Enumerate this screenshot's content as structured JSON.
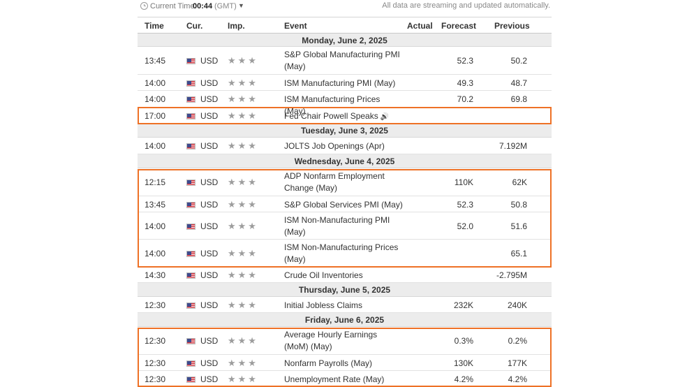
{
  "topbar": {
    "current_time_label": "Current Time:",
    "current_time": "00:44",
    "timezone": "(GMT)",
    "notice": "All data are streaming and updated automatically."
  },
  "columns": {
    "time": "Time",
    "cur": "Cur.",
    "imp": "Imp.",
    "event": "Event",
    "actual": "Actual",
    "forecast": "Forecast",
    "previous": "Previous"
  },
  "days": [
    {
      "date": "Monday, June 2, 2025",
      "events": [
        {
          "time": "13:45",
          "cur": "USD",
          "stars": "★★★",
          "event": "S&P Global Manufacturing PMI (May)",
          "actual": "",
          "forecast": "52.3",
          "previous": "50.2"
        },
        {
          "time": "14:00",
          "cur": "USD",
          "stars": "★★★",
          "event": "ISM Manufacturing PMI (May)",
          "actual": "",
          "forecast": "49.3",
          "previous": "48.7"
        },
        {
          "time": "14:00",
          "cur": "USD",
          "stars": "★★★",
          "event": "ISM Manufacturing Prices (May)",
          "actual": "",
          "forecast": "70.2",
          "previous": "69.8"
        },
        {
          "time": "17:00",
          "cur": "USD",
          "stars": "★★★",
          "event": "Fed Chair Powell Speaks",
          "actual": "",
          "forecast": "",
          "previous": ""
        }
      ]
    },
    {
      "date": "Tuesday, June 3, 2025",
      "events": [
        {
          "time": "14:00",
          "cur": "USD",
          "stars": "★★★",
          "event": "JOLTS Job Openings (Apr)",
          "actual": "",
          "forecast": "",
          "previous": "7.192M"
        }
      ]
    },
    {
      "date": "Wednesday, June 4, 2025",
      "events": [
        {
          "time": "12:15",
          "cur": "USD",
          "stars": "★★★",
          "event": "ADP Nonfarm Employment Change (May)",
          "actual": "",
          "forecast": "110K",
          "previous": "62K"
        },
        {
          "time": "13:45",
          "cur": "USD",
          "stars": "★★★",
          "event": "S&P Global Services PMI (May)",
          "actual": "",
          "forecast": "52.3",
          "previous": "50.8"
        },
        {
          "time": "14:00",
          "cur": "USD",
          "stars": "★★★",
          "event": "ISM Non-Manufacturing PMI (May)",
          "actual": "",
          "forecast": "52.0",
          "previous": "51.6"
        },
        {
          "time": "14:00",
          "cur": "USD",
          "stars": "★★★",
          "event": "ISM Non-Manufacturing Prices (May)",
          "actual": "",
          "forecast": "",
          "previous": "65.1"
        },
        {
          "time": "14:30",
          "cur": "USD",
          "stars": "★★★",
          "event": "Crude Oil Inventories",
          "actual": "",
          "forecast": "",
          "previous": "-2.795M"
        }
      ]
    },
    {
      "date": "Thursday, June 5, 2025",
      "events": [
        {
          "time": "12:30",
          "cur": "USD",
          "stars": "★★★",
          "event": "Initial Jobless Claims",
          "actual": "",
          "forecast": "232K",
          "previous": "240K"
        }
      ]
    },
    {
      "date": "Friday, June 6, 2025",
      "events": [
        {
          "time": "12:30",
          "cur": "USD",
          "stars": "★★★",
          "event": "Average Hourly Earnings (MoM) (May)",
          "actual": "",
          "forecast": "0.3%",
          "previous": "0.2%"
        },
        {
          "time": "12:30",
          "cur": "USD",
          "stars": "★★★",
          "event": "Nonfarm Payrolls (May)",
          "actual": "",
          "forecast": "130K",
          "previous": "177K"
        },
        {
          "time": "12:30",
          "cur": "USD",
          "stars": "★★★",
          "event": "Unemployment Rate (May)",
          "actual": "",
          "forecast": "4.2%",
          "previous": "4.2%"
        }
      ]
    }
  ],
  "colors": {
    "highlight": "#ee7126",
    "date_row_bg": "#ececec",
    "star": "#9d9d9d"
  }
}
